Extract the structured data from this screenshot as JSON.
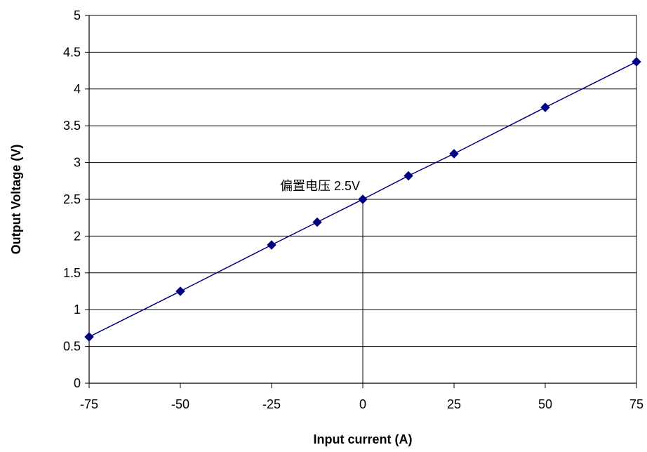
{
  "chart_data": {
    "type": "line",
    "title": "",
    "xlabel": "Input current (A)",
    "ylabel": "Output Voltage (V)",
    "xlim": [
      -75,
      75
    ],
    "ylim": [
      0,
      5
    ],
    "x_ticks": [
      -75,
      -50,
      -25,
      0,
      25,
      50,
      75
    ],
    "y_ticks": [
      0,
      0.5,
      1,
      1.5,
      2,
      2.5,
      3,
      3.5,
      4,
      4.5,
      5
    ],
    "x_tick_labels": [
      "-75",
      "-50",
      "-25",
      "0",
      "25",
      "50",
      "75"
    ],
    "y_tick_labels": [
      "0",
      "0.5",
      "1",
      "1.5",
      "2",
      "2.5",
      "3",
      "3.5",
      "4",
      "4.5",
      "5"
    ],
    "grid": "horizontal",
    "legend": "none",
    "series": [
      {
        "color": "#000080",
        "marker": "diamond",
        "x": [
          -75,
          -50,
          -25,
          -12.5,
          0,
          12.5,
          25,
          50,
          75
        ],
        "y": [
          0.63,
          1.25,
          1.88,
          2.19,
          2.5,
          2.82,
          3.12,
          3.75,
          4.37
        ]
      }
    ],
    "annotation": {
      "text": "偏置电压 2.5V",
      "x": 0,
      "y": 2.5
    }
  }
}
